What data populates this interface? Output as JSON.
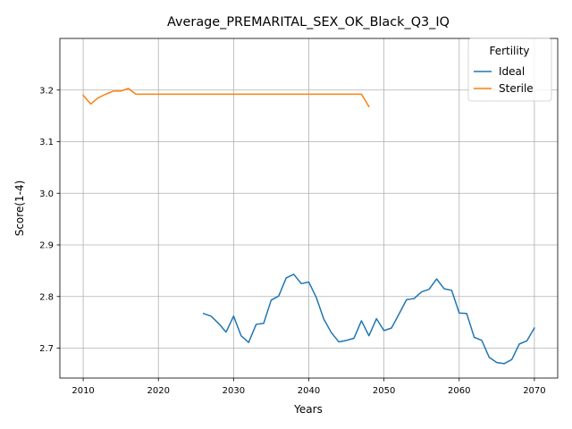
{
  "chart_data": {
    "type": "line",
    "title": "Average_PREMARITAL_SEX_OK_Black_Q3_IQ",
    "xlabel": "Years",
    "ylabel": "Score(1-4)",
    "xlim": [
      2006.9,
      2073.1
    ],
    "ylim": [
      2.642,
      3.3
    ],
    "xticks": [
      2010,
      2020,
      2030,
      2040,
      2050,
      2060,
      2070
    ],
    "yticks": [
      2.7,
      2.8,
      2.9,
      3.0,
      3.1,
      3.2
    ],
    "grid": true,
    "legend": {
      "title": "Fertility",
      "placement": "top-right"
    },
    "series": [
      {
        "name": "Ideal",
        "color": "#1f77b4",
        "x": [
          2026,
          2027,
          2028,
          2029,
          2030,
          2031,
          2032,
          2033,
          2034,
          2035,
          2036,
          2037,
          2038,
          2039,
          2040,
          2041,
          2042,
          2043,
          2044,
          2045,
          2046,
          2047,
          2048,
          2049,
          2050,
          2051,
          2052,
          2053,
          2054,
          2055,
          2056,
          2057,
          2058,
          2059,
          2060,
          2061,
          2062,
          2063,
          2064,
          2065,
          2066,
          2067,
          2068,
          2069,
          2070
        ],
        "y": [
          2.767,
          2.762,
          2.748,
          2.731,
          2.762,
          2.724,
          2.711,
          2.746,
          2.748,
          2.793,
          2.801,
          2.836,
          2.843,
          2.825,
          2.828,
          2.798,
          2.756,
          2.73,
          2.712,
          2.715,
          2.719,
          2.753,
          2.724,
          2.757,
          2.734,
          2.739,
          2.766,
          2.794,
          2.796,
          2.809,
          2.814,
          2.834,
          2.815,
          2.812,
          2.768,
          2.767,
          2.721,
          2.715,
          2.682,
          2.672,
          2.67,
          2.678,
          2.708,
          2.714,
          2.739
        ]
      },
      {
        "name": "Sterile",
        "color": "#ff7f0e",
        "x": [
          2010,
          2011,
          2012,
          2013,
          2014,
          2015,
          2016,
          2017,
          2018,
          2019,
          2020,
          2021,
          2022,
          2023,
          2024,
          2025,
          2026,
          2027,
          2028,
          2029,
          2030,
          2031,
          2032,
          2033,
          2034,
          2035,
          2036,
          2037,
          2038,
          2039,
          2040,
          2041,
          2042,
          2043,
          2044,
          2045,
          2046,
          2047,
          2048
        ],
        "y": [
          3.19,
          3.173,
          3.185,
          3.192,
          3.198,
          3.198,
          3.203,
          3.192,
          3.192,
          3.192,
          3.192,
          3.192,
          3.192,
          3.192,
          3.192,
          3.192,
          3.192,
          3.192,
          3.192,
          3.192,
          3.192,
          3.192,
          3.192,
          3.192,
          3.192,
          3.192,
          3.192,
          3.192,
          3.192,
          3.192,
          3.192,
          3.192,
          3.192,
          3.192,
          3.192,
          3.192,
          3.192,
          3.192,
          3.168
        ]
      }
    ]
  }
}
